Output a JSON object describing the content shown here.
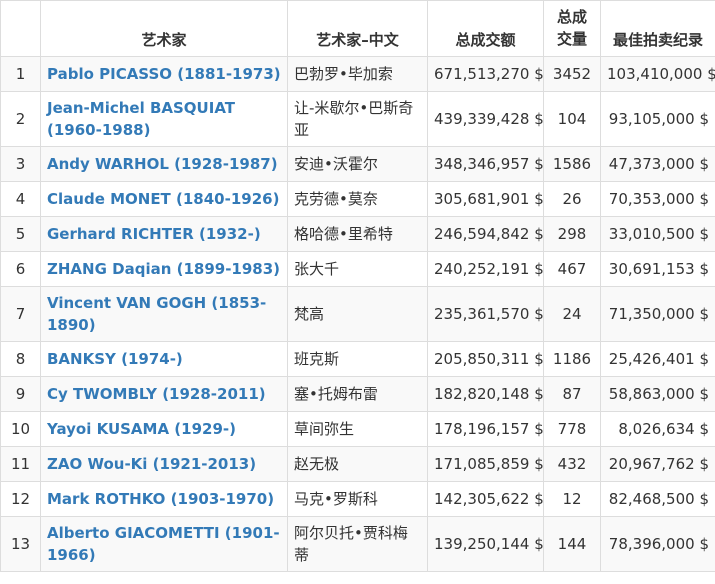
{
  "table": {
    "headers": {
      "rank": "",
      "artist": "艺术家",
      "artist_cn": "艺术家–中文",
      "total": "总成交额",
      "lots": "总成\n交量",
      "best": "最佳拍卖纪录"
    },
    "rows": [
      {
        "rank": "1",
        "artist": "Pablo PICASSO (1881-1973)",
        "artist_cn": "巴勃罗•毕加索",
        "total": "671,513,270 $",
        "lots": "3452",
        "best": "103,410,000 $"
      },
      {
        "rank": "2",
        "artist": "Jean-Michel BASQUIAT (1960-1988)",
        "artist_cn": "让-米歇尔•巴斯奇亚",
        "total": "439,339,428 $",
        "lots": "104",
        "best": "93,105,000 $"
      },
      {
        "rank": "3",
        "artist": "Andy WARHOL (1928-1987)",
        "artist_cn": "安迪•沃霍尔",
        "total": "348,346,957 $",
        "lots": "1586",
        "best": "47,373,000 $"
      },
      {
        "rank": "4",
        "artist": "Claude MONET (1840-1926)",
        "artist_cn": "克劳德•莫奈",
        "total": "305,681,901 $",
        "lots": "26",
        "best": "70,353,000 $"
      },
      {
        "rank": "5",
        "artist": "Gerhard RICHTER (1932-)",
        "artist_cn": "格哈德•里希特",
        "total": "246,594,842 $",
        "lots": "298",
        "best": "33,010,500 $"
      },
      {
        "rank": "6",
        "artist": "ZHANG Daqian (1899-1983)",
        "artist_cn": "张大千",
        "total": "240,252,191 $",
        "lots": "467",
        "best": "30,691,153 $"
      },
      {
        "rank": "7",
        "artist": "Vincent VAN GOGH (1853-1890)",
        "artist_cn": "梵高",
        "total": "235,361,570 $",
        "lots": "24",
        "best": "71,350,000 $"
      },
      {
        "rank": "8",
        "artist": "BANKSY (1974-)",
        "artist_cn": "班克斯",
        "total": "205,850,311 $",
        "lots": "1186",
        "best": "25,426,401 $"
      },
      {
        "rank": "9",
        "artist": "Cy TWOMBLY (1928-2011)",
        "artist_cn": "塞•托姆布雷",
        "total": "182,820,148 $",
        "lots": "87",
        "best": "58,863,000 $"
      },
      {
        "rank": "10",
        "artist": "Yayoi KUSAMA (1929-)",
        "artist_cn": "草间弥生",
        "total": "178,196,157 $",
        "lots": "778",
        "best": "8,026,634 $"
      },
      {
        "rank": "11",
        "artist": "ZAO Wou-Ki (1921-2013)",
        "artist_cn": "赵无极",
        "total": "171,085,859 $",
        "lots": "432",
        "best": "20,967,762 $"
      },
      {
        "rank": "12",
        "artist": "Mark ROTHKO (1903-1970)",
        "artist_cn": "马克•罗斯科",
        "total": "142,305,622 $",
        "lots": "12",
        "best": "82,468,500 $"
      },
      {
        "rank": "13",
        "artist": "Alberto GIACOMETTI (1901-1966)",
        "artist_cn": "阿尔贝托•贾科梅蒂",
        "total": "139,250,144 $",
        "lots": "144",
        "best": "78,396,000 $"
      }
    ]
  }
}
